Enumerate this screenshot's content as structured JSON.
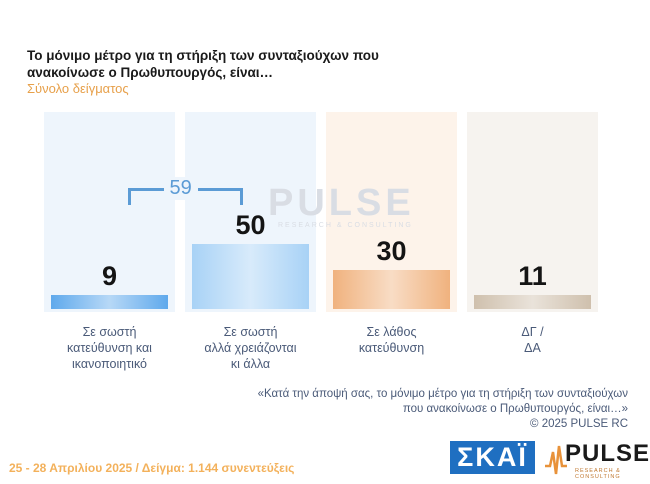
{
  "header": {
    "title": "Το μόνιμο μέτρο για τη στήριξη των συνταξιούχων που ανακοίνωσε ο Πρωθυπουργός, είναι…",
    "subtitle": "Σύνολο δείγματος"
  },
  "watermark": {
    "main": "PULSE",
    "sub": "RESEARCH & CONSULTING"
  },
  "chart_data": {
    "type": "bar",
    "title": "Το μόνιμο μέτρο για τη στήριξη των συνταξιούχων που ανακοίνωσε ο Πρωθυπουργός, είναι…",
    "subtitle": "Σύνολο δείγματος",
    "categories": [
      [
        "Σε σωστή",
        "κατεύθυνση και",
        "ικανοποιητικό"
      ],
      [
        "Σε σωστή",
        "αλλά χρειάζονται",
        "κι άλλα"
      ],
      [
        "Σε λάθος",
        "κατεύθυνση"
      ],
      [
        "ΔΓ /",
        "ΔΑ"
      ]
    ],
    "values": [
      9,
      50,
      30,
      11
    ],
    "colors": [
      "#5fa9ec",
      "#a8d2f6",
      "#f0b27e",
      "#cfc0ad"
    ],
    "panel_colors": [
      "#eef5fc",
      "#eef5fc",
      "#fdf3ea",
      "#f6f3ef"
    ],
    "group_total": {
      "label": "59",
      "spans": [
        0,
        1
      ]
    },
    "ylim": [
      0,
      100
    ],
    "grid": false,
    "legend": "none"
  },
  "footer": {
    "note_lines": [
      "«Κατά την άποψή σας, το μόνιμο μέτρο για τη στήριξη των συνταξιούχων",
      "που ανακοίνωσε ο Πρωθυπουργός, είναι…»"
    ],
    "copyright": "© 2025 PULSE RC",
    "fieldwork": "25 - 28 Απριλίου 2025 / Δείγμα: 1.144 συνεντεύξεις"
  },
  "logos": {
    "skai": "ΣΚΑΪ",
    "pulse": "PULSE",
    "pulse_sub": "RESEARCH & CONSULTING"
  }
}
